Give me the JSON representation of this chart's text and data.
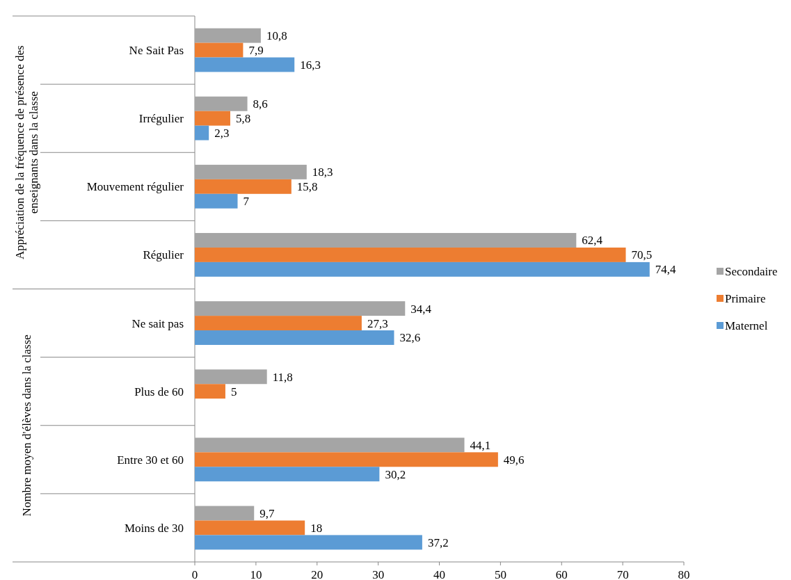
{
  "chart_data": {
    "type": "bar",
    "orientation": "horizontal",
    "categories": [
      "Ne Sait Pas",
      "Irrégulier",
      "Mouvement régulier",
      "Régulier",
      "Ne sait pas",
      "Plus de 60",
      "Entre 30 et 60",
      "Moins de 30"
    ],
    "annotations": [
      "Appréciation de la fréquence de présence des enseignants dans la classe",
      "Nombre moyen d'élèves dans la classe"
    ],
    "series": [
      {
        "name": "Secondaire",
        "color": "#a5a5a5",
        "values": [
          10.8,
          8.6,
          18.3,
          62.4,
          34.4,
          11.8,
          44.1,
          9.7
        ],
        "value_labels": [
          "10,8",
          "8,6",
          "18,3",
          "62,4",
          "34,4",
          "11,8",
          "44,1",
          "9,7"
        ]
      },
      {
        "name": "Primaire",
        "color": "#ed7d31",
        "values": [
          7.9,
          5.8,
          15.8,
          70.5,
          27.3,
          5,
          49.6,
          18
        ],
        "value_labels": [
          "7,9",
          "5,8",
          "15,8",
          "70,5",
          "27,3",
          "5",
          "49,6",
          "18"
        ]
      },
      {
        "name": "Maternel",
        "color": "#5b9bd5",
        "values": [
          16.3,
          2.3,
          7,
          74.4,
          32.6,
          null,
          30.2,
          37.2
        ],
        "value_labels": [
          "16,3",
          "2,3",
          "7",
          "74,4",
          "32,6",
          null,
          "30,2",
          "37,2"
        ]
      }
    ],
    "xlim": [
      0,
      80
    ],
    "xticks": [
      0,
      10,
      20,
      30,
      40,
      50,
      60,
      70,
      80
    ],
    "grid": false,
    "legend": "right"
  }
}
